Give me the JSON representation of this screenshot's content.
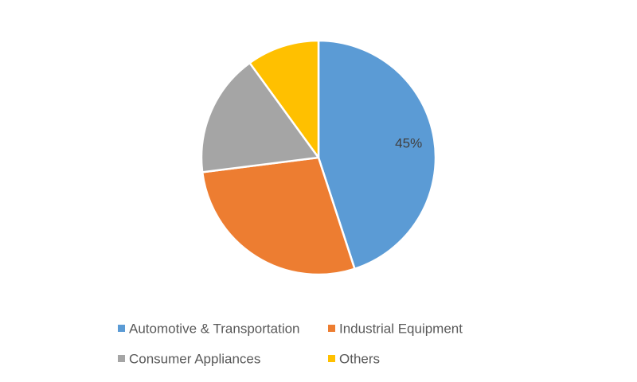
{
  "chart_data": {
    "type": "pie",
    "title": "",
    "categories": [
      "Automotive & Transportation",
      "Industrial Equipment",
      "Consumer Appliances",
      "Others"
    ],
    "values": [
      45,
      28,
      17,
      10
    ],
    "colors": [
      "#5B9BD5",
      "#ED7D31",
      "#A5A5A5",
      "#FFC000"
    ],
    "data_labels": [
      "45%",
      "",
      "",
      ""
    ],
    "legend_position": "bottom",
    "start_angle_deg": 0,
    "direction": "clockwise"
  }
}
